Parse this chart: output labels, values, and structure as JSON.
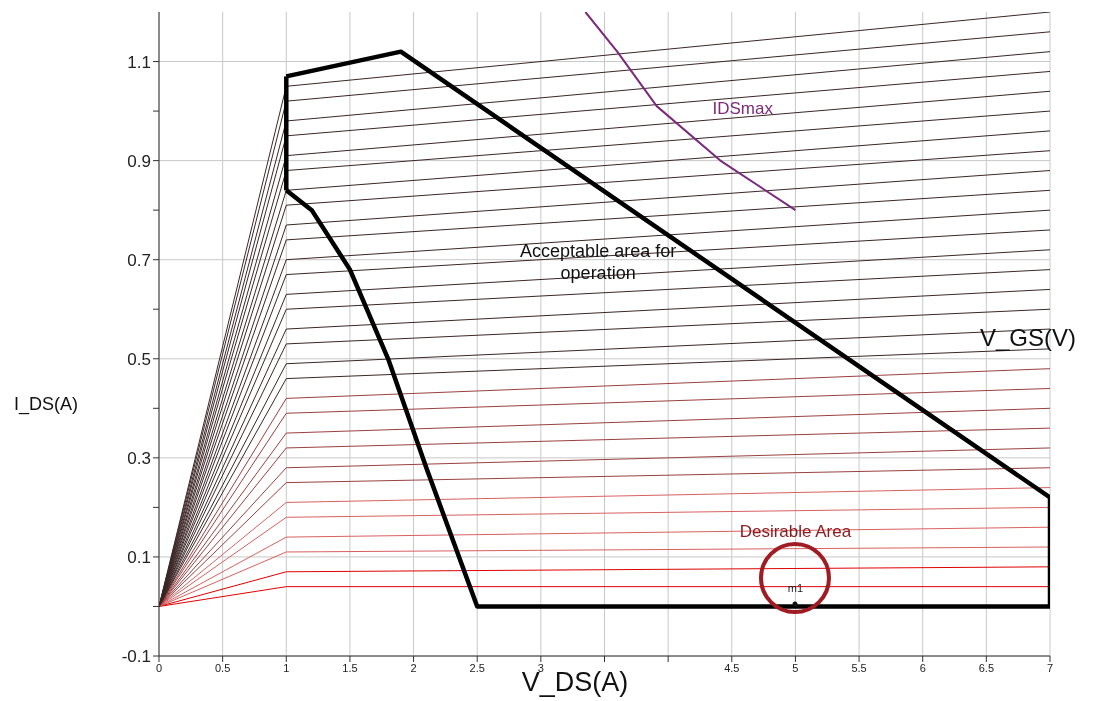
{
  "chart_data": {
    "type": "line",
    "xlabel": "V_DS(A)",
    "ylabel": "I_DS(A)",
    "xlim": [
      0,
      7
    ],
    "ylim": [
      -0.1,
      1.2
    ],
    "xticks": [
      0,
      0.5,
      1,
      1.5,
      2,
      2.5,
      3,
      {
        "value": 3.5,
        "label": null
      },
      {
        "value": 4,
        "label": null
      },
      4.5,
      5,
      5.5,
      6,
      6.5,
      7
    ],
    "yticks": [
      -0.1,
      {
        "value": 0,
        "label": null
      },
      0.1,
      {
        "value": 0.2,
        "label": null
      },
      0.3,
      {
        "value": 0.4,
        "label": null
      },
      0.5,
      {
        "value": 0.6,
        "label": null
      },
      0.7,
      {
        "value": 0.8,
        "label": null
      },
      0.9,
      {
        "value": 1,
        "label": null
      },
      1.1
    ],
    "grid": true,
    "legend": false,
    "marker": "none",
    "line_style": "solid",
    "annotations": [
      "Acceptable area for operation",
      "V_GS(V)",
      "Desirable Area",
      "m1"
    ],
    "series": [
      {
        "color": "#e00000",
        "x": [
          0,
          1,
          7
        ],
        "values": [
          0,
          0.04,
          0.04
        ]
      },
      {
        "color": "#e00000",
        "x": [
          0,
          1,
          7
        ],
        "values": [
          0,
          0.07,
          0.08
        ]
      },
      {
        "color": "#d86060",
        "x": [
          0,
          1,
          7
        ],
        "values": [
          0,
          0.11,
          0.12
        ]
      },
      {
        "color": "#d86060",
        "x": [
          0,
          1,
          7
        ],
        "values": [
          0,
          0.14,
          0.16
        ]
      },
      {
        "color": "#d86060",
        "x": [
          0,
          1,
          7
        ],
        "values": [
          0,
          0.18,
          0.2
        ]
      },
      {
        "color": "#d86060",
        "x": [
          0,
          1,
          7
        ],
        "values": [
          0,
          0.21,
          0.24
        ]
      },
      {
        "color": "#9a4040",
        "x": [
          0,
          1,
          7
        ],
        "values": [
          0,
          0.25,
          0.28
        ]
      },
      {
        "color": "#9a4040",
        "x": [
          0,
          1,
          7
        ],
        "values": [
          0,
          0.28,
          0.32
        ]
      },
      {
        "color": "#9a4040",
        "x": [
          0,
          1,
          7
        ],
        "values": [
          0,
          0.32,
          0.36
        ]
      },
      {
        "color": "#9a4040",
        "x": [
          0,
          1,
          7
        ],
        "values": [
          0,
          0.35,
          0.4
        ]
      },
      {
        "color": "#9a4040",
        "x": [
          0,
          1,
          7
        ],
        "values": [
          0,
          0.39,
          0.44
        ]
      },
      {
        "color": "#9a4040",
        "x": [
          0,
          1,
          7
        ],
        "values": [
          0,
          0.42,
          0.48
        ]
      },
      {
        "color": "#3c2626",
        "x": [
          0,
          1,
          7
        ],
        "values": [
          0,
          0.46,
          0.52
        ]
      },
      {
        "color": "#3c2626",
        "x": [
          0,
          1,
          7
        ],
        "values": [
          0,
          0.49,
          0.56
        ]
      },
      {
        "color": "#3c2626",
        "x": [
          0,
          1,
          7
        ],
        "values": [
          0,
          0.53,
          0.6
        ]
      },
      {
        "color": "#3c2626",
        "x": [
          0,
          1,
          7
        ],
        "values": [
          0,
          0.56,
          0.64
        ]
      },
      {
        "color": "#3c2626",
        "x": [
          0,
          1,
          7
        ],
        "values": [
          0,
          0.6,
          0.68
        ]
      },
      {
        "color": "#3c2626",
        "x": [
          0,
          1,
          7
        ],
        "values": [
          0,
          0.63,
          0.72
        ]
      },
      {
        "color": "#3c2626",
        "x": [
          0,
          1,
          7
        ],
        "values": [
          0,
          0.67,
          0.76
        ]
      },
      {
        "color": "#3c2626",
        "x": [
          0,
          1,
          7
        ],
        "values": [
          0,
          0.7,
          0.8
        ]
      },
      {
        "color": "#3c2626",
        "x": [
          0,
          1,
          7
        ],
        "values": [
          0,
          0.74,
          0.84
        ]
      },
      {
        "color": "#3c2626",
        "x": [
          0,
          1,
          7
        ],
        "values": [
          0,
          0.77,
          0.88
        ]
      },
      {
        "color": "#3c2626",
        "x": [
          0,
          1,
          7
        ],
        "values": [
          0,
          0.81,
          0.92
        ]
      },
      {
        "color": "#3c2626",
        "x": [
          0,
          1,
          7
        ],
        "values": [
          0,
          0.84,
          0.96
        ]
      },
      {
        "color": "#3c2626",
        "x": [
          0,
          1,
          7
        ],
        "values": [
          0,
          0.88,
          1.0
        ]
      },
      {
        "color": "#3c2626",
        "x": [
          0,
          1,
          7
        ],
        "values": [
          0,
          0.91,
          1.04
        ]
      },
      {
        "color": "#3c2626",
        "x": [
          0,
          1,
          7
        ],
        "values": [
          0,
          0.95,
          1.08
        ]
      },
      {
        "color": "#3c2626",
        "x": [
          0,
          1,
          7
        ],
        "values": [
          0,
          0.98,
          1.12
        ]
      },
      {
        "color": "#3c2626",
        "x": [
          0,
          1,
          7
        ],
        "values": [
          0,
          1.02,
          1.16
        ]
      },
      {
        "color": "#3c2626",
        "x": [
          0,
          1,
          7
        ],
        "values": [
          0,
          1.05,
          1.2
        ]
      },
      {
        "color": "#000000",
        "x": [
          1,
          1.9,
          7
        ],
        "values": [
          1.07,
          1.12,
          0.22
        ]
      },
      {
        "color": "#000000",
        "x": [
          1,
          1.2,
          1.5,
          1.8,
          2.1,
          2.5,
          7
        ],
        "values": [
          0.84,
          0.8,
          0.68,
          0.5,
          0.28,
          0,
          0
        ]
      },
      {
        "color": "#000000",
        "x": [
          1,
          1
        ],
        "values": [
          0.84,
          1.07
        ]
      },
      {
        "color": "#000000",
        "x": [
          7,
          7
        ],
        "values": [
          0,
          0.22
        ]
      },
      {
        "name": "IDSmax",
        "color": "#7b2a7b",
        "x": [
          3.35,
          3.6,
          3.91,
          4.41,
          5
        ],
        "values": [
          1.2,
          1.12,
          1.01,
          0.9,
          0.8
        ]
      }
    ]
  }
}
